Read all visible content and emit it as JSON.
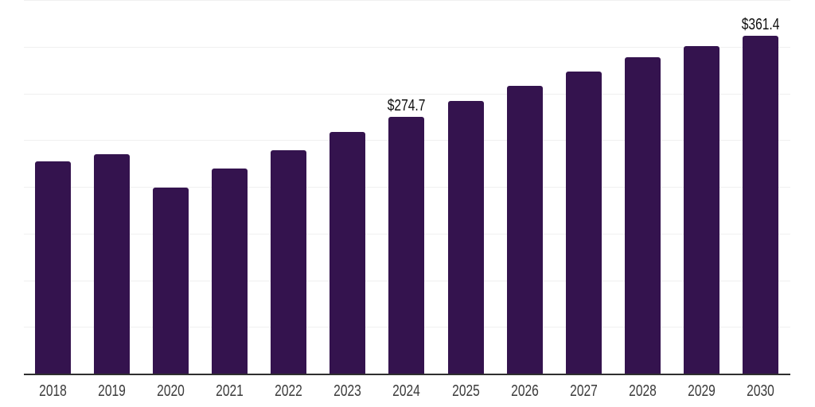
{
  "chart_data": {
    "type": "bar",
    "title": "",
    "xlabel": "",
    "ylabel": "",
    "categories": [
      "2018",
      "2019",
      "2020",
      "2021",
      "2022",
      "2023",
      "2024",
      "2025",
      "2026",
      "2027",
      "2028",
      "2029",
      "2030"
    ],
    "values": [
      227.0,
      234.5,
      199.0,
      219.5,
      239.5,
      258.5,
      274.7,
      292.0,
      308.0,
      323.5,
      338.5,
      350.5,
      361.4
    ],
    "data_labels": [
      {
        "category": "2024",
        "text": "$274.7"
      },
      {
        "category": "2030",
        "text": "$361.4"
      }
    ],
    "ylim": [
      0,
      400
    ],
    "grid_step": 50,
    "grid": true,
    "legend": false,
    "y_tick_labels_visible": false,
    "colors": {
      "bar": "#34134e",
      "gridline": "#f0f0f0",
      "axis_line": "#2f2f2f",
      "x_tick_label": "#3a3a3a",
      "data_label": "#0f0f0f",
      "background": "#ffffff"
    }
  }
}
